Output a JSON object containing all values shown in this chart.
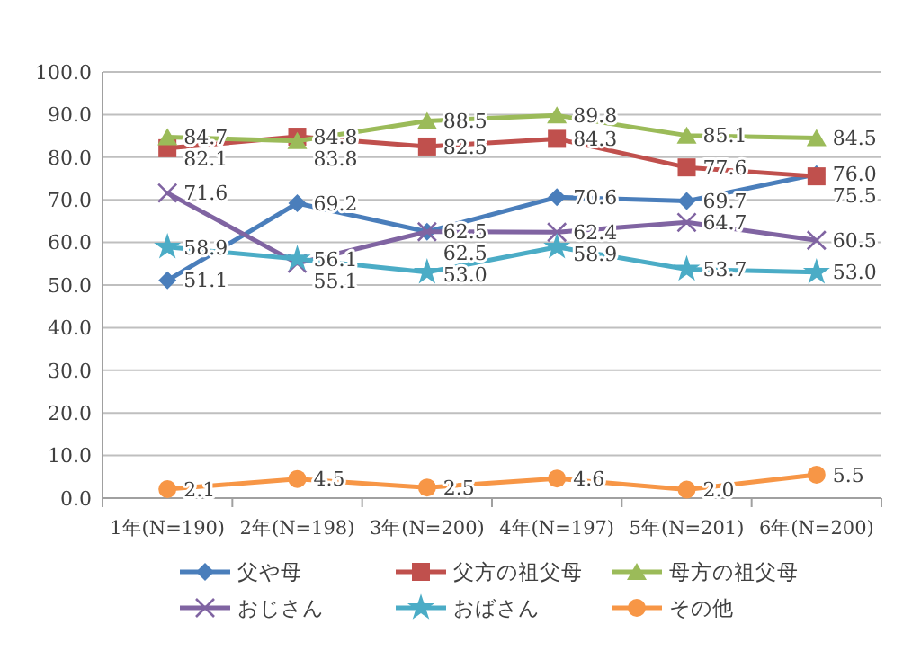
{
  "chart_data": {
    "type": "line",
    "categories": [
      "1年(N=190)",
      "2年(N=198)",
      "3年(N=200)",
      "4年(N=197)",
      "5年(N=201)",
      "6年(N=200)"
    ],
    "ylim": [
      0,
      100
    ],
    "yticks": [
      {
        "value": 0,
        "label": "0.0"
      },
      {
        "value": 10,
        "label": "10.0"
      },
      {
        "value": 20,
        "label": "20.0"
      },
      {
        "value": 30,
        "label": "30.0"
      },
      {
        "value": 40,
        "label": "40.0"
      },
      {
        "value": 50,
        "label": "50.0"
      },
      {
        "value": 60,
        "label": "60.0"
      },
      {
        "value": 70,
        "label": "70.0"
      },
      {
        "value": 80,
        "label": "80.0"
      },
      {
        "value": 90,
        "label": "90.0"
      },
      {
        "value": 100,
        "label": "100.0"
      }
    ],
    "grid": "y",
    "legend": "bottom",
    "series": [
      {
        "name": "父や母",
        "color": "#4a7ebb",
        "marker": "diamond",
        "values": [
          51.1,
          69.2,
          62.5,
          70.6,
          69.7,
          76.0
        ],
        "value_labels": [
          "51.1",
          "69.2",
          "62.5",
          "70.6",
          "69.7",
          "76.0"
        ]
      },
      {
        "name": "父方の祖父母",
        "color": "#c0504d",
        "marker": "square",
        "values": [
          82.1,
          84.8,
          82.5,
          84.3,
          77.6,
          75.5
        ],
        "value_labels": [
          "82.1",
          "84.8",
          "82.5",
          "84.3",
          "77.6",
          "75.5"
        ]
      },
      {
        "name": "母方の祖父母",
        "color": "#9bbb59",
        "marker": "triangle",
        "values": [
          84.7,
          83.8,
          88.5,
          89.8,
          85.1,
          84.5
        ],
        "value_labels": [
          "84.7",
          "83.8",
          "88.5",
          "89.8",
          "85.1",
          "84.5"
        ]
      },
      {
        "name": "おじさん",
        "color": "#8064a2",
        "marker": "cross",
        "values": [
          71.6,
          55.1,
          62.5,
          62.4,
          64.7,
          60.5
        ],
        "value_labels": [
          "71.6",
          "55.1",
          "62.5",
          "62.4",
          "64.7",
          "60.5"
        ]
      },
      {
        "name": "おばさん",
        "color": "#4bacc6",
        "marker": "star",
        "values": [
          58.9,
          56.1,
          53.0,
          58.9,
          53.7,
          53.0
        ],
        "value_labels": [
          "58.9",
          "56.1",
          "53.0",
          "58.9",
          "53.7",
          "53.0"
        ]
      },
      {
        "name": "その他",
        "color": "#f79646",
        "marker": "circle",
        "values": [
          2.1,
          4.5,
          2.5,
          4.6,
          2.0,
          5.5
        ],
        "value_labels": [
          "2.1",
          "4.5",
          "2.5",
          "4.6",
          "2.0",
          "5.5"
        ]
      }
    ]
  }
}
